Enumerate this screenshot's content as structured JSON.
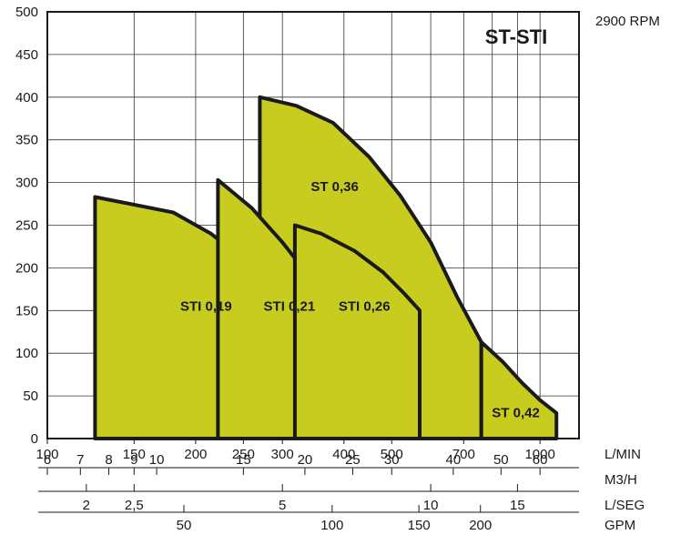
{
  "chart_data": {
    "type": "area",
    "title": "ST-STI",
    "subtitle": "2900 RPM",
    "x_scale": "log",
    "xlim": [
      100,
      1200
    ],
    "ylim": [
      0,
      500
    ],
    "y_ticks": [
      0,
      50,
      100,
      150,
      200,
      250,
      300,
      350,
      400,
      450,
      500
    ],
    "grid": true,
    "colors": {
      "fill": "#c8cc1e",
      "stroke": "#1a1a1a",
      "grid": "#333333"
    },
    "x_axes": [
      {
        "unit": "L/MIN",
        "ticks": [
          {
            "label": "100",
            "x": 100
          },
          {
            "label": "150",
            "x": 150
          },
          {
            "label": "200",
            "x": 200
          },
          {
            "label": "250",
            "x": 250
          },
          {
            "label": "300",
            "x": 300
          },
          {
            "label": "400",
            "x": 400
          },
          {
            "label": "500",
            "x": 500
          },
          {
            "label": "700",
            "x": 700
          },
          {
            "label": "1000",
            "x": 1000
          }
        ]
      },
      {
        "unit": "M3/H",
        "ticks": [
          {
            "label": "6",
            "x": 100
          },
          {
            "label": "7",
            "x": 116.7
          },
          {
            "label": "8",
            "x": 133.3
          },
          {
            "label": "9",
            "x": 150
          },
          {
            "label": "10",
            "x": 166.7
          },
          {
            "label": "15",
            "x": 250
          },
          {
            "label": "20",
            "x": 333.3
          },
          {
            "label": "25",
            "x": 416.7
          },
          {
            "label": "30",
            "x": 500
          },
          {
            "label": "40",
            "x": 666.7
          },
          {
            "label": "50",
            "x": 833.3
          },
          {
            "label": "60",
            "x": 1000
          }
        ]
      },
      {
        "unit": "L/SEG",
        "ticks": [
          {
            "label": "2",
            "x": 120
          },
          {
            "label": "2,5",
            "x": 150
          },
          {
            "label": "5",
            "x": 300
          },
          {
            "label": "10",
            "x": 600
          },
          {
            "label": "15",
            "x": 900
          }
        ]
      },
      {
        "unit": "GPM",
        "ticks": [
          {
            "label": "50",
            "x": 189.3
          },
          {
            "label": "100",
            "x": 378.5
          },
          {
            "label": "150",
            "x": 567.8
          },
          {
            "label": "200",
            "x": 757
          }
        ]
      }
    ],
    "series": [
      {
        "name": "STI 0,19",
        "points": [
          [
            125,
            0
          ],
          [
            125,
            283
          ],
          [
            180,
            265
          ],
          [
            215,
            240
          ],
          [
            250,
            210
          ],
          [
            265,
            195
          ],
          [
            265,
            0
          ]
        ]
      },
      {
        "name": "STI 0,21",
        "points": [
          [
            222,
            0
          ],
          [
            222,
            215
          ],
          [
            222,
            303
          ],
          [
            260,
            270
          ],
          [
            300,
            230
          ],
          [
            340,
            190
          ],
          [
            355,
            175
          ],
          [
            355,
            0
          ]
        ]
      },
      {
        "name": "STI 0,26",
        "points": [
          [
            318,
            0
          ],
          [
            318,
            250
          ],
          [
            360,
            240
          ],
          [
            420,
            220
          ],
          [
            480,
            195
          ],
          [
            530,
            170
          ],
          [
            570,
            150
          ],
          [
            570,
            0
          ]
        ]
      },
      {
        "name": "ST 0,36",
        "points": [
          [
            270,
            0
          ],
          [
            270,
            260
          ],
          [
            270,
            400
          ],
          [
            320,
            390
          ],
          [
            380,
            370
          ],
          [
            450,
            330
          ],
          [
            520,
            285
          ],
          [
            600,
            230
          ],
          [
            680,
            165
          ],
          [
            760,
            113
          ],
          [
            760,
            0
          ]
        ]
      },
      {
        "name": "ST 0,42",
        "points": [
          [
            760,
            0
          ],
          [
            760,
            113
          ],
          [
            840,
            90
          ],
          [
            920,
            65
          ],
          [
            1000,
            45
          ],
          [
            1080,
            30
          ],
          [
            1080,
            0
          ]
        ]
      }
    ]
  }
}
